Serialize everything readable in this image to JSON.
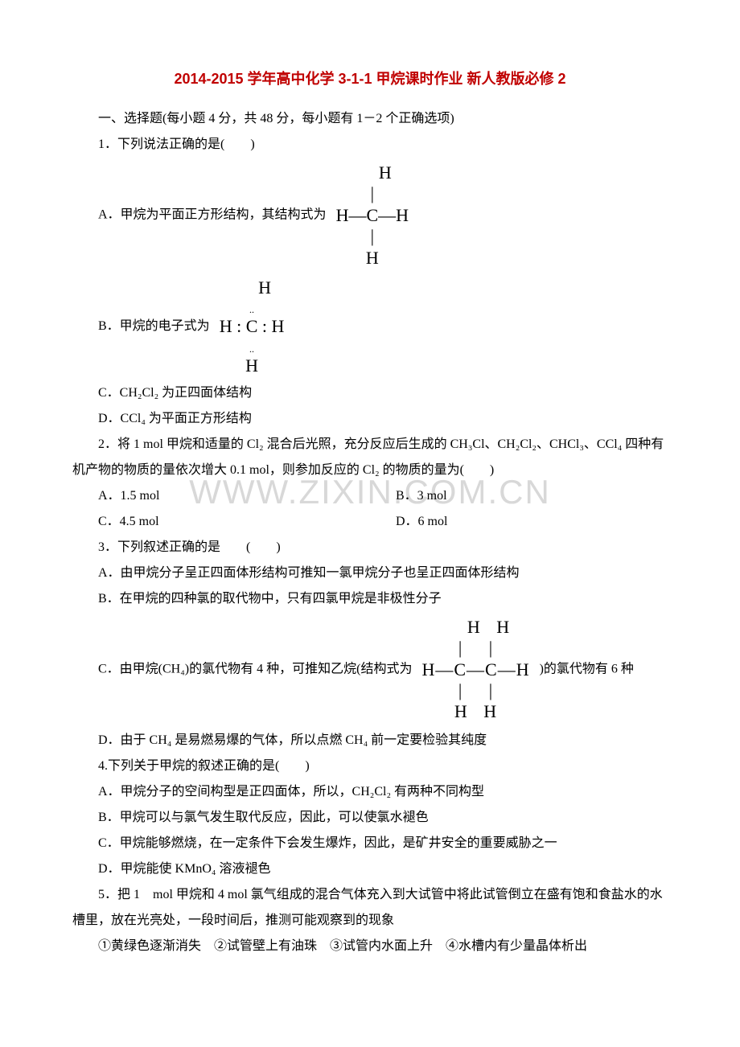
{
  "watermark": "WWW.ZIXIN.COM.CN",
  "title": {
    "prefix": "2014-2015 学年高中化学 3-1-1 甲烷课时作业 新人教版必修 2"
  },
  "section1": "一、选择题(每小题 4 分，共 48 分，每小题有 1－2 个正确选项)",
  "q1": {
    "stem": "1．下列说法正确的是(　　)",
    "optA_pre": "A．甲烷为平面正方形结构，其结构式为",
    "structA": "H\n|\nH—C—H\n|\nH",
    "optB_pre": "B．甲烷的电子式为",
    "structB_line1": "H",
    "structB_line2": "H : C : H",
    "structB_line3": "H",
    "optC": "C．CH₂Cl₂ 为正四面体结构",
    "optD": "D．CCl₄ 为平面正方形结构"
  },
  "q2": {
    "stem": "2．将 1 mol 甲烷和适量的 Cl₂ 混合后光照，充分反应后生成的 CH₃Cl、CH₂Cl₂、CHCl₃、CCl₄ 四种有机产物的物质的量依次增大 0.1 mol，则参加反应的 Cl₂ 的物质的量为(　　)",
    "A": "A．1.5 mol",
    "B": "B．3 mol",
    "C": "C．4.5 mol",
    "D": "D．6 mol"
  },
  "q3": {
    "stem": "3．下列叙述正确的是　　(　　)",
    "A": "A．由甲烷分子呈正四面体形结构可推知一氯甲烷分子也呈正四面体形结构",
    "B": "B．在甲烷的四种氯的取代物中，只有四氯甲烷是非极性分子",
    "C_pre": "C．由甲烷(CH₄)的氯代物有 4 种，可推知乙烷(结构式为",
    "C_post": ")的氯代物有 6 种",
    "structC": "H   H\n|   |\nH—C—C—H\n|   |\nH   H",
    "D": "D．由于 CH₄ 是易燃易爆的气体，所以点燃 CH₄ 前一定要检验其纯度"
  },
  "q4": {
    "stem": "4.下列关于甲烷的叙述正确的是(　　)",
    "A": "A．甲烷分子的空间构型是正四面体，所以，CH₂Cl₂ 有两种不同构型",
    "B": "B．甲烷可以与氯气发生取代反应，因此，可以使氯水褪色",
    "C": "C．甲烷能够燃烧，在一定条件下会发生爆炸，因此，是矿井安全的重要威胁之一",
    "D": "D．甲烷能使 KMnO₄ 溶液褪色"
  },
  "q5": {
    "stem": "5．把 1　mol 甲烷和 4 mol 氯气组成的混合气体充入到大试管中将此试管倒立在盛有饱和食盐水的水槽里，放在光亮处，一段时间后，推测可能观察到的现象",
    "line2": "①黄绿色逐渐消失　②试管壁上有油珠　③试管内水面上升　④水槽内有少量晶体析出"
  }
}
